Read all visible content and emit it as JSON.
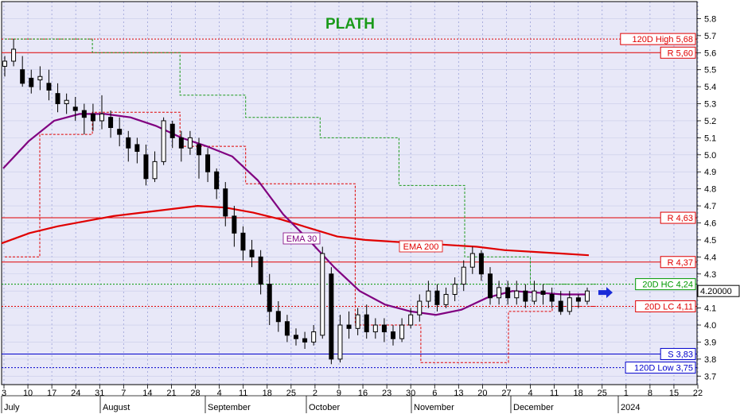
{
  "chart_data": {
    "type": "candlestick",
    "title": "PLATH",
    "y_range": [
      3.65,
      5.9
    ],
    "y_ticks": [
      "5.8",
      "5.7",
      "5.6",
      "5.5",
      "5.4",
      "5.3",
      "5.2",
      "5.1",
      "5.0",
      "4.9",
      "4.8",
      "4.7",
      "4.6",
      "4.5",
      "4.4",
      "4.3",
      "4.2",
      "4.1",
      "4.0",
      "3.9",
      "3.8",
      "3.7"
    ],
    "x_ticks": [
      "3",
      "10",
      "17",
      "24",
      "31",
      "7",
      "14",
      "21",
      "28",
      "4",
      "11",
      "18",
      "25",
      "2",
      "9",
      "16",
      "23",
      "30",
      "6",
      "13",
      "20",
      "27",
      "4",
      "11",
      "18",
      "25",
      "1",
      "8",
      "15",
      "22"
    ],
    "months": [
      "July",
      "August",
      "September",
      "October",
      "November",
      "December",
      "2024"
    ],
    "last_price": "4.20000",
    "levels": {
      "high120": {
        "label": "120D High 5,68",
        "value": 5.68,
        "color": "#e00000"
      },
      "r560": {
        "label": "R 5,60",
        "value": 5.6,
        "color": "#e00000"
      },
      "r463": {
        "label": "R 4,63",
        "value": 4.63,
        "color": "#e00000"
      },
      "r437": {
        "label": "R 4,37",
        "value": 4.37,
        "color": "#e00000"
      },
      "hc20": {
        "label": "20D HC 4,24",
        "value": 4.24,
        "color": "#009900"
      },
      "lc20": {
        "label": "20D LC 4,11",
        "value": 4.11,
        "color": "#e00000"
      },
      "s383": {
        "label": "S 3,83",
        "value": 3.83,
        "color": "#0000cc"
      },
      "low120": {
        "label": "120D Low 3,75",
        "value": 3.75,
        "color": "#0000cc"
      }
    },
    "series": [
      {
        "name": "EMA 200",
        "color": "#e00000"
      },
      {
        "name": "EMA 30",
        "color": "#800080"
      }
    ],
    "ema200": [
      4.48,
      4.54,
      4.58,
      4.61,
      4.64,
      4.66,
      4.68,
      4.7,
      4.69,
      4.66,
      4.62,
      4.57,
      4.52,
      4.5,
      4.49,
      4.48,
      4.47,
      4.46,
      4.44,
      4.43,
      4.42,
      4.41
    ],
    "ema30": [
      4.92,
      5.08,
      5.2,
      5.24,
      5.24,
      5.22,
      5.17,
      5.1,
      5.05,
      4.99,
      4.85,
      4.65,
      4.5,
      4.34,
      4.2,
      4.12,
      4.08,
      4.06,
      4.09,
      4.16,
      4.2,
      4.19,
      4.18,
      4.18
    ],
    "candles": [
      [
        5.52,
        5.55,
        5.46,
        5.58
      ],
      [
        5.55,
        5.62,
        5.52,
        5.68
      ],
      [
        5.5,
        5.42,
        5.4,
        5.58
      ],
      [
        5.45,
        5.4,
        5.36,
        5.5
      ],
      [
        5.44,
        5.46,
        5.38,
        5.52
      ],
      [
        5.42,
        5.38,
        5.32,
        5.5
      ],
      [
        5.36,
        5.3,
        5.25,
        5.42
      ],
      [
        5.3,
        5.32,
        5.24,
        5.36
      ],
      [
        5.28,
        5.26,
        5.2,
        5.34
      ],
      [
        5.26,
        5.22,
        5.12,
        5.3
      ],
      [
        5.24,
        5.2,
        5.14,
        5.3
      ],
      [
        5.2,
        5.24,
        5.15,
        5.35
      ],
      [
        5.22,
        5.16,
        5.1,
        5.26
      ],
      [
        5.15,
        5.12,
        5.05,
        5.22
      ],
      [
        5.1,
        5.04,
        4.96,
        5.14
      ],
      [
        5.06,
        5.02,
        4.95,
        5.1
      ],
      [
        5.0,
        4.86,
        4.82,
        5.06
      ],
      [
        4.86,
        4.96,
        4.84,
        5.02
      ],
      [
        4.96,
        5.2,
        4.94,
        5.22
      ],
      [
        5.18,
        5.1,
        5.04,
        5.2
      ],
      [
        5.1,
        5.04,
        4.96,
        5.14
      ],
      [
        5.04,
        5.1,
        5.0,
        5.14
      ],
      [
        5.06,
        5.0,
        4.86,
        5.1
      ],
      [
        5.0,
        4.9,
        4.84,
        5.04
      ],
      [
        4.9,
        4.8,
        4.74,
        4.92
      ],
      [
        4.8,
        4.64,
        4.58,
        4.84
      ],
      [
        4.64,
        4.54,
        4.46,
        4.7
      ],
      [
        4.54,
        4.44,
        4.38,
        4.58
      ],
      [
        4.44,
        4.4,
        4.34,
        4.5
      ],
      [
        4.4,
        4.24,
        4.18,
        4.44
      ],
      [
        4.24,
        4.08,
        4.0,
        4.3
      ],
      [
        4.08,
        4.02,
        3.96,
        4.14
      ],
      [
        4.02,
        3.94,
        3.9,
        4.06
      ],
      [
        3.94,
        3.92,
        3.88,
        3.98
      ],
      [
        3.92,
        3.9,
        3.86,
        3.96
      ],
      [
        3.9,
        3.96,
        3.88,
        4.0
      ],
      [
        3.94,
        4.42,
        3.92,
        4.46
      ],
      [
        4.3,
        3.8,
        3.77,
        4.34
      ],
      [
        3.8,
        4.0,
        3.78,
        4.06
      ],
      [
        4.0,
        3.98,
        3.92,
        4.08
      ],
      [
        3.98,
        4.06,
        3.94,
        4.1
      ],
      [
        4.06,
        3.96,
        3.92,
        4.12
      ],
      [
        3.96,
        4.0,
        3.92,
        4.04
      ],
      [
        4.0,
        3.96,
        3.9,
        4.04
      ],
      [
        3.96,
        3.92,
        3.88,
        4.0
      ],
      [
        3.92,
        4.0,
        3.9,
        4.04
      ],
      [
        4.0,
        4.06,
        3.98,
        4.1
      ],
      [
        4.06,
        4.14,
        4.02,
        4.18
      ],
      [
        4.14,
        4.2,
        4.1,
        4.26
      ],
      [
        4.2,
        4.12,
        4.08,
        4.24
      ],
      [
        4.12,
        4.18,
        4.1,
        4.22
      ],
      [
        4.18,
        4.24,
        4.14,
        4.28
      ],
      [
        4.24,
        4.34,
        4.2,
        4.38
      ],
      [
        4.34,
        4.42,
        4.3,
        4.46
      ],
      [
        4.42,
        4.3,
        4.26,
        4.44
      ],
      [
        4.3,
        4.16,
        4.12,
        4.34
      ],
      [
        4.16,
        4.22,
        4.12,
        4.26
      ],
      [
        4.22,
        4.16,
        4.12,
        4.26
      ],
      [
        4.16,
        4.2,
        4.12,
        4.26
      ],
      [
        4.2,
        4.14,
        4.1,
        4.24
      ],
      [
        4.14,
        4.2,
        4.12,
        4.26
      ],
      [
        4.2,
        4.18,
        4.12,
        4.24
      ],
      [
        4.18,
        4.14,
        4.1,
        4.22
      ],
      [
        4.14,
        4.08,
        4.06,
        4.2
      ],
      [
        4.08,
        4.16,
        4.06,
        4.2
      ],
      [
        4.16,
        4.14,
        4.1,
        4.18
      ],
      [
        4.14,
        4.2,
        4.12,
        4.22
      ]
    ],
    "hc_steps": [
      [
        0,
        5.68
      ],
      [
        20,
        5.68
      ],
      [
        20,
        5.6
      ],
      [
        40,
        5.6
      ],
      [
        40,
        5.35
      ],
      [
        55,
        5.35
      ],
      [
        55,
        5.22
      ],
      [
        72,
        5.22
      ],
      [
        72,
        5.1
      ],
      [
        90,
        5.1
      ],
      [
        90,
        4.82
      ],
      [
        105,
        4.82
      ],
      [
        105,
        4.4
      ],
      [
        120,
        4.4
      ],
      [
        120,
        4.24
      ],
      [
        135,
        4.24
      ]
    ],
    "lc_steps": [
      [
        0,
        4.4
      ],
      [
        8,
        4.4
      ],
      [
        8,
        5.12
      ],
      [
        20,
        5.12
      ],
      [
        20,
        5.25
      ],
      [
        40,
        5.25
      ],
      [
        40,
        5.05
      ],
      [
        55,
        5.05
      ],
      [
        55,
        4.83
      ],
      [
        80,
        4.83
      ],
      [
        80,
        4.0
      ],
      [
        95,
        4.0
      ],
      [
        95,
        3.78
      ],
      [
        115,
        3.78
      ],
      [
        115,
        4.08
      ],
      [
        125,
        4.08
      ],
      [
        125,
        4.11
      ],
      [
        135,
        4.11
      ]
    ]
  },
  "ema30_label": "EMA 30",
  "ema200_label": "EMA 200"
}
